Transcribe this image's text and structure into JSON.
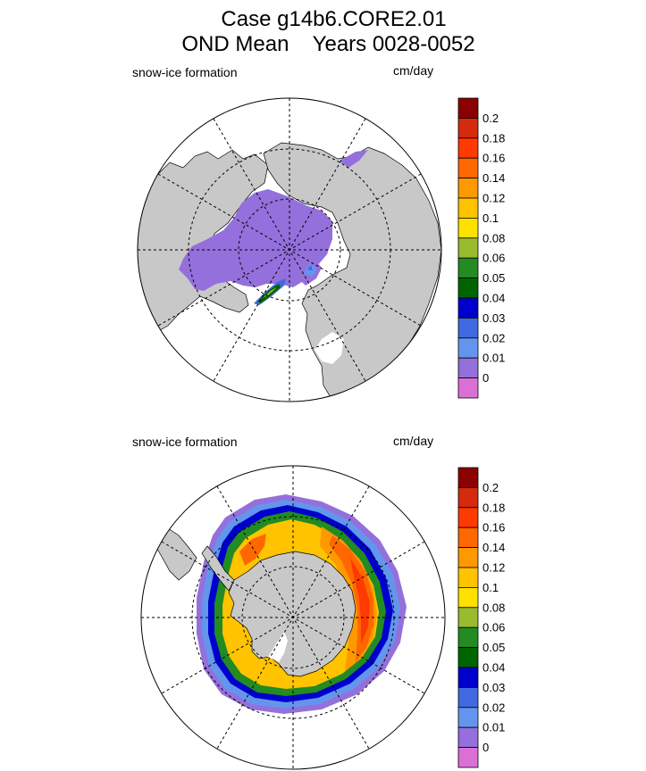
{
  "title": {
    "line1": "Case g14b6.CORE2.01",
    "line2": "OND Mean    Years 0028-0052"
  },
  "panels": [
    {
      "hemisphere": "north",
      "left_label": "snow-ice formation",
      "units_label": "cm/day"
    },
    {
      "hemisphere": "south",
      "left_label": "snow-ice formation",
      "units_label": "cm/day"
    }
  ],
  "colorbar": {
    "levels": [
      "0.2",
      "0.18",
      "0.16",
      "0.14",
      "0.12",
      "0.1",
      "0.08",
      "0.06",
      "0.05",
      "0.04",
      "0.03",
      "0.02",
      "0.01",
      "0"
    ],
    "colors": [
      "#8b0000",
      "#d42a0d",
      "#ff3a00",
      "#ff6800",
      "#ff9900",
      "#ffc300",
      "#ffe100",
      "#9bbb2f",
      "#228b22",
      "#006400",
      "#0000cd",
      "#4169e1",
      "#6495ed",
      "#9370db",
      "#da70d6"
    ]
  },
  "map_colors": {
    "land": "#c8c8c8",
    "ocean": "#ffffff",
    "coast": "#000000"
  }
}
